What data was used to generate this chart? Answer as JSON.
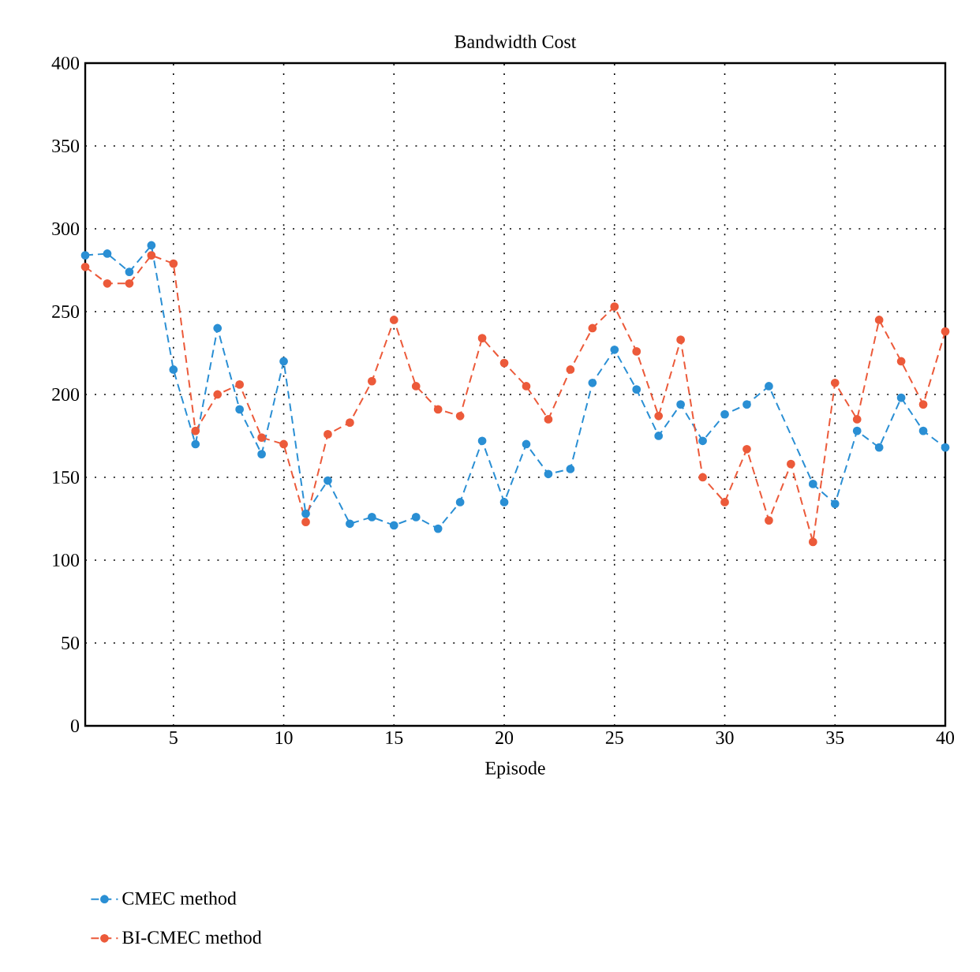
{
  "chart_data": {
    "type": "line",
    "title": "Bandwidth Cost",
    "xlabel": "Episode",
    "x": [
      1,
      2,
      3,
      4,
      5,
      6,
      7,
      8,
      9,
      10,
      11,
      12,
      13,
      14,
      15,
      16,
      17,
      18,
      19,
      20,
      21,
      22,
      23,
      24,
      25,
      26,
      27,
      28,
      29,
      30,
      31,
      32,
      33,
      34,
      35,
      36,
      37,
      38,
      39,
      40
    ],
    "series": [
      {
        "name": "CMEC method",
        "color": "#2a8fd4",
        "values": [
          284,
          285,
          274,
          290,
          215,
          170,
          240,
          191,
          164,
          220,
          128,
          148,
          122,
          126,
          121,
          126,
          119,
          135,
          172,
          135,
          170,
          152,
          155,
          207,
          227,
          203,
          175,
          194,
          172,
          188,
          194,
          205,
          null,
          146,
          134,
          178,
          168,
          198,
          178,
          168
        ]
      },
      {
        "name": "BI-CMEC method",
        "color": "#ec5a3a",
        "values": [
          277,
          267,
          267,
          284,
          279,
          178,
          200,
          206,
          174,
          170,
          123,
          176,
          183,
          208,
          245,
          205,
          191,
          187,
          234,
          219,
          205,
          185,
          215,
          240,
          253,
          226,
          187,
          233,
          150,
          135,
          167,
          124,
          158,
          111,
          207,
          185,
          245,
          220,
          194,
          238
        ]
      }
    ],
    "xlim": [
      1,
      40
    ],
    "xticks": [
      5,
      10,
      15,
      20,
      25,
      30,
      35,
      40
    ],
    "ylim": [
      0,
      400
    ],
    "yticks": [
      0,
      50,
      100,
      150,
      200,
      250,
      300,
      350,
      400
    ],
    "grid": true,
    "legend": "bottom",
    "marker": "circle",
    "line_style": "dashed"
  }
}
